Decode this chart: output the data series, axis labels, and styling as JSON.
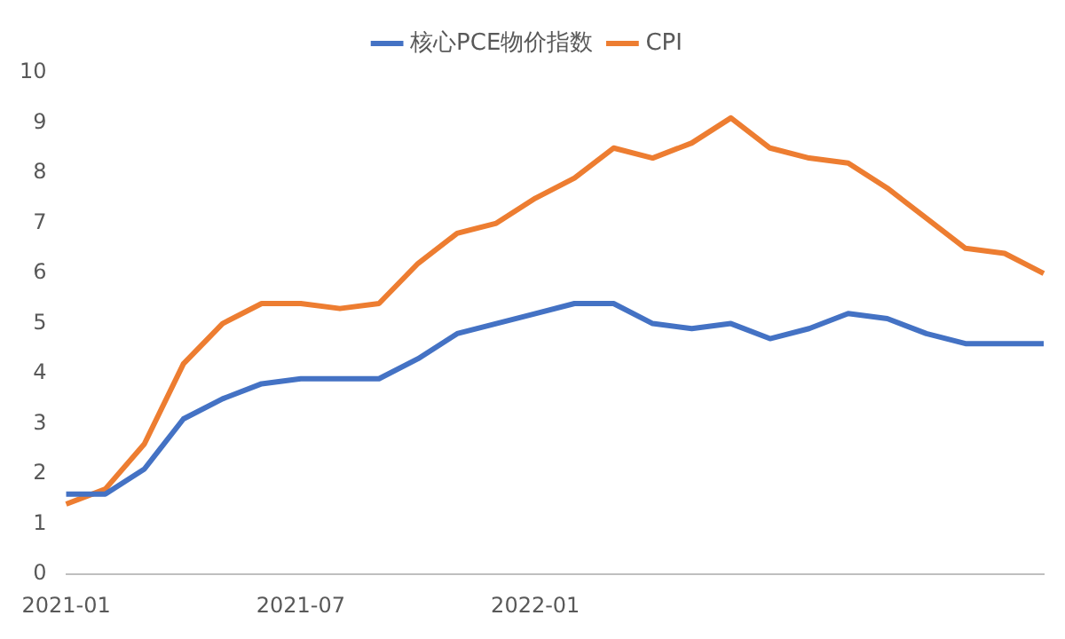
{
  "chart_data": {
    "type": "line",
    "categories": [
      "2021-01",
      null,
      null,
      null,
      null,
      null,
      "2021-07",
      null,
      null,
      null,
      null,
      null,
      "2022-01",
      null,
      null,
      null,
      null,
      null,
      null,
      null,
      null,
      null,
      null,
      null,
      null,
      null
    ],
    "series": [
      {
        "name": "核心PCE物价指数",
        "color": "#4472c4",
        "values": [
          1.6,
          1.6,
          2.1,
          3.1,
          3.5,
          3.8,
          3.9,
          3.9,
          3.9,
          4.3,
          4.8,
          5.0,
          5.2,
          5.4,
          5.4,
          5.0,
          4.9,
          5.0,
          4.7,
          4.9,
          5.2,
          5.1,
          4.8,
          4.6,
          4.6,
          4.6
        ]
      },
      {
        "name": "CPI",
        "color": "#ed7d31",
        "values": [
          1.4,
          1.7,
          2.6,
          4.2,
          5.0,
          5.4,
          5.4,
          5.3,
          5.4,
          6.2,
          6.8,
          7.0,
          7.5,
          7.9,
          8.5,
          8.3,
          8.6,
          9.1,
          8.5,
          8.3,
          8.2,
          7.7,
          7.1,
          6.5,
          6.4,
          6.0
        ]
      }
    ],
    "ylim": [
      0,
      10
    ],
    "yticks": [
      0,
      1,
      2,
      3,
      4,
      5,
      6,
      7,
      8,
      9,
      10
    ],
    "grid": false,
    "legend": "top",
    "marker": "none",
    "line_style": "solid"
  }
}
